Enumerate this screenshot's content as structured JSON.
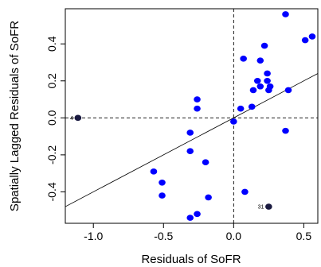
{
  "chart_data": {
    "type": "scatter",
    "title": "",
    "xlabel": "Residuals of SoFR",
    "ylabel": "Spatially Lagged Residuals of SoFR",
    "xlim": [
      -1.2,
      0.6
    ],
    "ylim": [
      -0.57,
      0.59
    ],
    "x_ticks": [
      -1.0,
      -0.5,
      0.0,
      0.5
    ],
    "x_tick_labels": [
      "-1.0",
      "-0.5",
      "0.0",
      "0.5"
    ],
    "y_ticks": [
      -0.4,
      -0.2,
      0.0,
      0.2,
      0.4
    ],
    "y_tick_labels": [
      "-0.4",
      "-0.2",
      "0.0",
      "0.2",
      "0.4"
    ],
    "reference_lines": {
      "vertical_x": 0.0,
      "horizontal_y": 0.0,
      "style": "dashed"
    },
    "fit_line": {
      "slope": 0.4,
      "intercept": 0.0
    },
    "point_color": "#0000ff",
    "influential_color": "#1a1a40",
    "points": [
      {
        "x": 0.37,
        "y": 0.56
      },
      {
        "x": 0.56,
        "y": 0.44
      },
      {
        "x": 0.51,
        "y": 0.42
      },
      {
        "x": 0.22,
        "y": 0.39
      },
      {
        "x": 0.07,
        "y": 0.32
      },
      {
        "x": 0.19,
        "y": 0.31
      },
      {
        "x": 0.24,
        "y": 0.24
      },
      {
        "x": 0.17,
        "y": 0.2
      },
      {
        "x": 0.24,
        "y": 0.2
      },
      {
        "x": 0.19,
        "y": 0.17
      },
      {
        "x": 0.26,
        "y": 0.17
      },
      {
        "x": 0.14,
        "y": 0.15
      },
      {
        "x": 0.25,
        "y": 0.15
      },
      {
        "x": 0.39,
        "y": 0.15
      },
      {
        "x": -0.26,
        "y": 0.1
      },
      {
        "x": -0.26,
        "y": 0.05
      },
      {
        "x": 0.05,
        "y": 0.05
      },
      {
        "x": 0.13,
        "y": 0.06
      },
      {
        "x": 0.0,
        "y": -0.02
      },
      {
        "x": -0.31,
        "y": -0.08
      },
      {
        "x": 0.37,
        "y": -0.07
      },
      {
        "x": -0.31,
        "y": -0.18
      },
      {
        "x": -0.2,
        "y": -0.24
      },
      {
        "x": -0.57,
        "y": -0.29
      },
      {
        "x": -0.51,
        "y": -0.35
      },
      {
        "x": -0.51,
        "y": -0.42
      },
      {
        "x": -0.18,
        "y": -0.43
      },
      {
        "x": 0.08,
        "y": -0.4
      },
      {
        "x": -0.26,
        "y": -0.52
      },
      {
        "x": -0.31,
        "y": -0.54
      },
      {
        "x": -1.11,
        "y": 0.0,
        "influential": true,
        "label": "4"
      },
      {
        "x": 0.25,
        "y": -0.48,
        "influential": true,
        "label": "31"
      }
    ]
  }
}
